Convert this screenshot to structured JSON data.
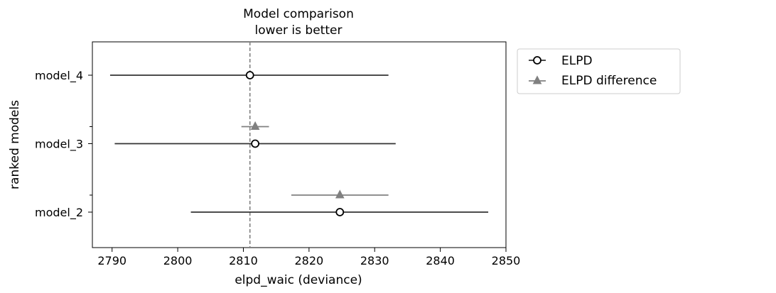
{
  "chart_data": {
    "type": "scatter",
    "title": "Model comparison",
    "subtitle": "lower is better",
    "xlabel": "elpd_waic (deviance)",
    "ylabel": "ranked models",
    "xlim": [
      2787,
      2850
    ],
    "xticks": [
      2790,
      2800,
      2810,
      2820,
      2830,
      2840,
      2850
    ],
    "categories": [
      "model_4",
      "model_3",
      "model_2"
    ],
    "reference_line": 2811,
    "legend_position": "outside-right",
    "grid": false,
    "series": [
      {
        "name": "ELPD",
        "marker": "open-circle",
        "color": "#333333",
        "points": [
          {
            "model": "model_4",
            "value": 2811,
            "low": 2789.7,
            "high": 2832.1
          },
          {
            "model": "model_3",
            "value": 2811.8,
            "low": 2790.4,
            "high": 2833.2
          },
          {
            "model": "model_2",
            "value": 2824.7,
            "low": 2802,
            "high": 2847.3
          }
        ]
      },
      {
        "name": "ELPD difference",
        "marker": "triangle",
        "color": "#808080",
        "points": [
          {
            "model": "model_3",
            "value": 2811.8,
            "low": 2809.7,
            "high": 2813.9
          },
          {
            "model": "model_2",
            "value": 2824.7,
            "low": 2817.3,
            "high": 2832.1
          }
        ]
      }
    ]
  }
}
